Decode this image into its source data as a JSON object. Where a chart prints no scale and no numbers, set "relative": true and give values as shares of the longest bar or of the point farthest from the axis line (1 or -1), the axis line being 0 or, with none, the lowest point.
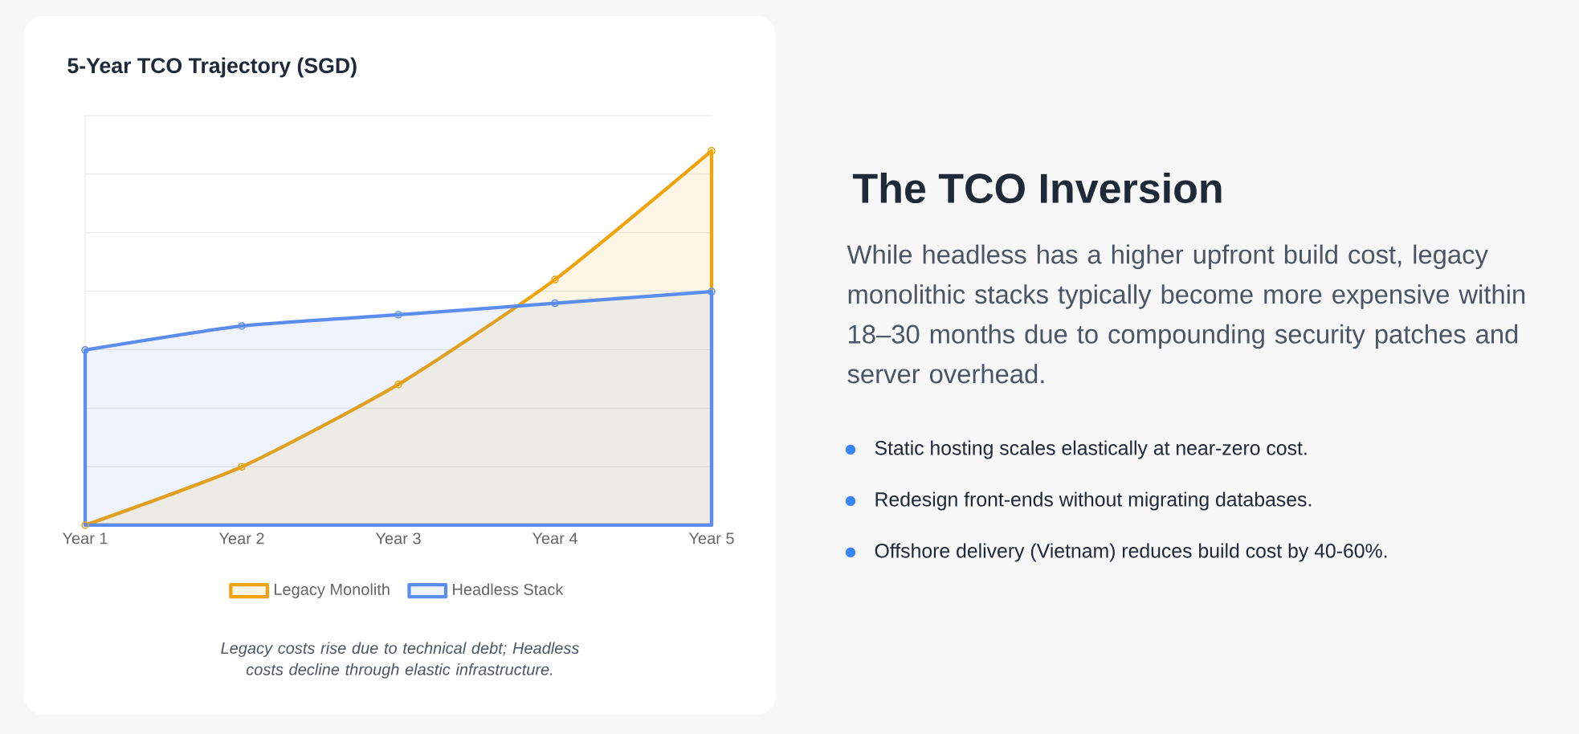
{
  "chart_data": [
    {
      "type": "area",
      "title": "5-Year TCO Trajectory (SGD)",
      "categories": [
        "Year 1",
        "Year 2",
        "Year 3",
        "Year 4",
        "Year 5"
      ],
      "relative": true,
      "grid": "y",
      "legend": "bottom",
      "marker": "circle",
      "series": [
        {
          "name": "Legacy Monolith",
          "color": "#f0a30a",
          "values": [
            0,
            0.156,
            0.376,
            0.656,
            1
          ]
        },
        {
          "name": "Headless Stack",
          "color": "#5b8def",
          "values": [
            0.468,
            0.532,
            0.562,
            0.593,
            0.624
          ]
        }
      ],
      "annotations": [
        "Legacy costs rise due to technical debt; Headless costs decline through elastic infrastructure."
      ]
    },
    {
      "type": "other",
      "title": "The TCO Inversion",
      "annotations": [
        "While headless has a higher upfront build cost, legacy monolithic stacks typically become more expensive within 18–30 months due to compounding security patches and server overhead.",
        "Static hosting scales elastically at near-zero cost.",
        "Redesign front-ends without migrating databases.",
        "Offshore delivery (Vietnam) reduces build cost by 40-60%."
      ]
    }
  ]
}
